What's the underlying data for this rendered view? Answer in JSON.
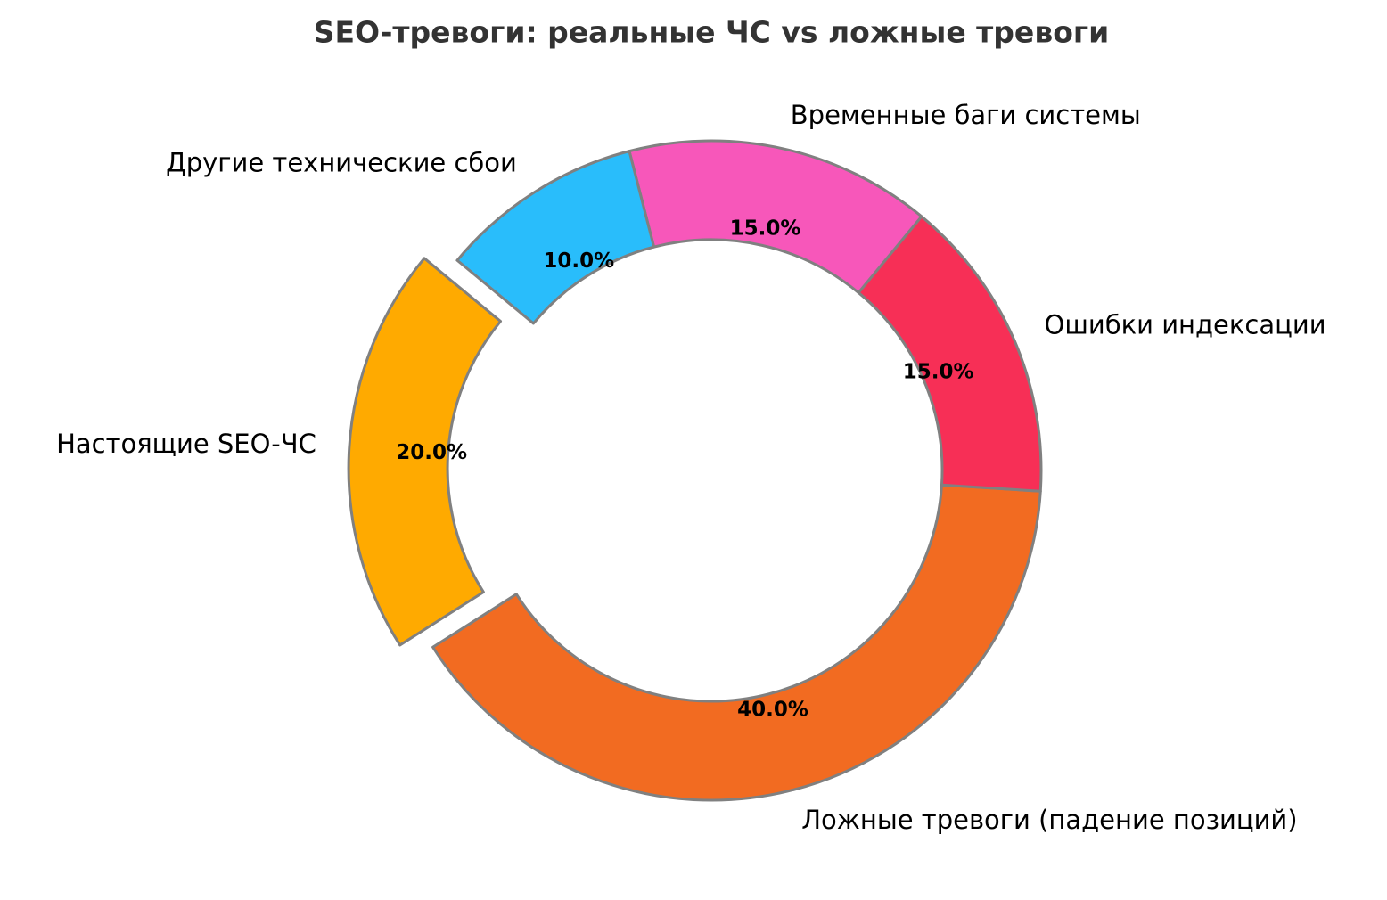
{
  "chart_data": {
    "type": "donut",
    "title": "SEO-тревоги: реальные ЧС vs ложные тревоги",
    "categories": [
      "Настоящие SEO-ЧС",
      "Ложные тревоги (падение позиций)",
      "Ошибки индексации",
      "Временные баги системы",
      "Другие технические сбои"
    ],
    "values": [
      20,
      40,
      15,
      15,
      10
    ],
    "value_labels": [
      "20.0%",
      "40.0%",
      "15.0%",
      "15.0%",
      "10.0%"
    ],
    "colors": [
      "#ffaa00",
      "#f26b21",
      "#f72f56",
      "#f757ba",
      "#29bdfb"
    ],
    "explode": [
      0.1,
      0,
      0,
      0,
      0
    ]
  }
}
